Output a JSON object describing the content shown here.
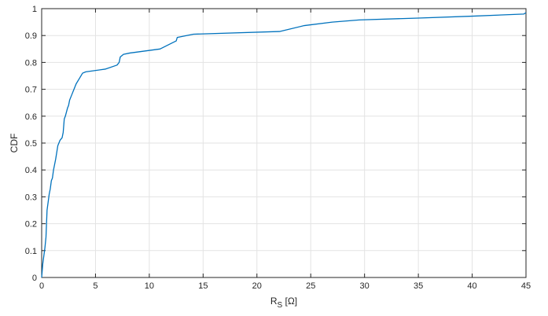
{
  "chart_data": {
    "type": "line",
    "title": "",
    "xlabel": "R",
    "xlabel_subscript": "S",
    "xlabel_suffix": " [Ω]",
    "ylabel": "CDF",
    "xlim": [
      0,
      45
    ],
    "ylim": [
      0,
      1
    ],
    "xticks": [
      0,
      5,
      10,
      15,
      20,
      25,
      30,
      35,
      40,
      45
    ],
    "yticks": [
      0,
      0.1,
      0.2,
      0.3,
      0.4,
      0.5,
      0.6,
      0.7,
      0.8,
      0.9,
      1
    ],
    "ytick_labels": [
      "0",
      "0.1",
      "0.2",
      "0.3",
      "0.4",
      "0.5",
      "0.6",
      "0.7",
      "0.8",
      "0.9",
      "1"
    ],
    "grid": true,
    "line_color": "#0072BD",
    "series": [
      {
        "x": [
          0,
          0.1,
          0.2,
          0.3,
          0.4,
          0.5,
          0.6,
          0.7,
          0.8,
          0.9,
          1.0,
          1.1,
          1.3,
          1.5,
          1.6,
          1.7,
          1.9,
          2.0,
          2.1,
          2.2,
          2.4,
          2.5,
          2.6,
          2.8,
          3.0,
          3.2,
          3.5,
          3.8,
          4.1,
          5.9,
          7.0,
          7.2,
          7.3,
          7.6,
          8.2,
          11.0,
          12.0,
          12.5,
          12.6,
          14.1,
          22.1,
          24.4,
          27.0,
          29.5,
          35.0,
          40.0,
          44.8,
          45.0
        ],
        "y": [
          0,
          0.05,
          0.08,
          0.11,
          0.15,
          0.25,
          0.28,
          0.31,
          0.33,
          0.36,
          0.37,
          0.4,
          0.44,
          0.49,
          0.5,
          0.51,
          0.52,
          0.54,
          0.59,
          0.6,
          0.63,
          0.64,
          0.66,
          0.68,
          0.7,
          0.72,
          0.74,
          0.76,
          0.765,
          0.775,
          0.79,
          0.8,
          0.82,
          0.83,
          0.835,
          0.85,
          0.87,
          0.88,
          0.893,
          0.905,
          0.915,
          0.937,
          0.95,
          0.958,
          0.965,
          0.972,
          0.98,
          0.985
        ]
      }
    ]
  }
}
